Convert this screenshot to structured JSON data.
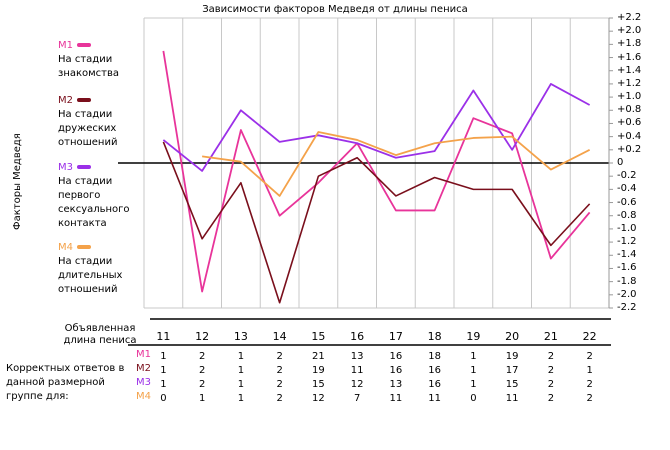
{
  "chart_data": {
    "type": "line",
    "title": "Зависимости факторов Медведя от длины пениса",
    "ylabel": "Факторы Медведя",
    "xlabel": "Объявленная длина пениса",
    "categories": [
      "11",
      "12",
      "13",
      "14",
      "15",
      "16",
      "17",
      "18",
      "19",
      "20",
      "21",
      "22"
    ],
    "ylim": [
      -2.2,
      2.2
    ],
    "yticks": [
      "+2.2",
      "+2.0",
      "+1.8",
      "+1.6",
      "+1.4",
      "+1.2",
      "+1.0",
      "+0.8",
      "+0.6",
      "+0.4",
      "+0.2",
      "0",
      "-0.2",
      "-0.4",
      "-0.6",
      "-0.8",
      "-1.0",
      "-1.2",
      "-1.4",
      "-1.6",
      "-1.8",
      "-2.0",
      "-2.2"
    ],
    "grid": true,
    "legend_position": "left",
    "series": [
      {
        "code": "M1",
        "name": "На стадии знакомства",
        "color": "#e8349a",
        "values": [
          1.7,
          -1.95,
          0.5,
          -0.8,
          -0.3,
          0.3,
          -0.72,
          -0.72,
          0.68,
          0.45,
          -1.45,
          -0.75
        ]
      },
      {
        "code": "M2",
        "name": "На стадии дружеских отношений",
        "color": "#7a0f1c",
        "values": [
          0.32,
          -1.15,
          -0.3,
          -2.12,
          -0.2,
          0.08,
          -0.5,
          -0.22,
          -0.4,
          -0.4,
          -1.25,
          -0.62
        ]
      },
      {
        "code": "M3",
        "name": "На стадии первого сексуального контакта",
        "color": "#9b30e8",
        "values": [
          0.35,
          -0.12,
          0.8,
          0.32,
          0.42,
          0.3,
          0.08,
          0.18,
          1.1,
          0.2,
          1.2,
          0.88
        ]
      },
      {
        "code": "M4",
        "name": "На стадии длительных отношений",
        "color": "#f4a24a",
        "values": [
          null,
          0.1,
          0.02,
          -0.5,
          0.47,
          0.35,
          0.12,
          0.3,
          0.38,
          0.4,
          -0.1,
          0.2
        ]
      }
    ],
    "counts_label": "Корректных ответов в данной размерной группе для:",
    "counts": [
      {
        "code": "M1",
        "color": "#e8349a",
        "values": [
          "1",
          "2",
          "1",
          "2",
          "21",
          "13",
          "16",
          "18",
          "1",
          "19",
          "2",
          "2"
        ]
      },
      {
        "code": "M2",
        "color": "#7a0f1c",
        "values": [
          "1",
          "2",
          "1",
          "2",
          "19",
          "11",
          "16",
          "16",
          "1",
          "17",
          "2",
          "1"
        ]
      },
      {
        "code": "M3",
        "color": "#9b30e8",
        "values": [
          "1",
          "2",
          "1",
          "2",
          "15",
          "12",
          "13",
          "16",
          "1",
          "15",
          "2",
          "2"
        ]
      },
      {
        "code": "M4",
        "color": "#f4a24a",
        "values": [
          "0",
          "1",
          "1",
          "2",
          "12",
          "7",
          "11",
          "11",
          "0",
          "11",
          "2",
          "2"
        ]
      }
    ]
  }
}
